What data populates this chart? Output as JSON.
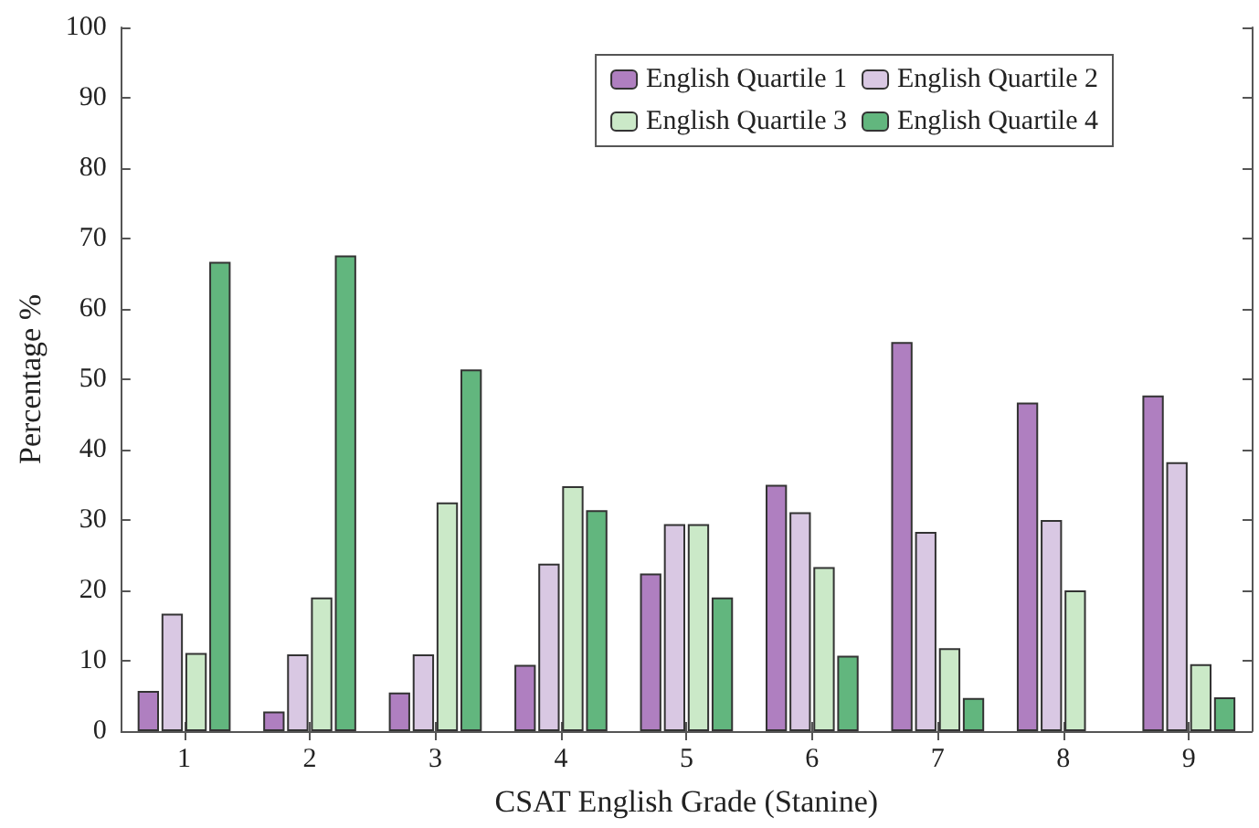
{
  "chart_data": {
    "type": "bar",
    "xlabel": "CSAT English Grade (Stanine)",
    "ylabel": "Percentage %",
    "categories": [
      "1",
      "2",
      "3",
      "4",
      "5",
      "6",
      "7",
      "8",
      "9"
    ],
    "series": [
      {
        "name": "English Quartile 1",
        "color": "#af7fc0",
        "values": [
          5.7,
          2.8,
          5.5,
          9.4,
          22.4,
          35,
          55.3,
          46.7,
          47.7
        ]
      },
      {
        "name": "English Quartile 2",
        "color": "#d9c8e3",
        "values": [
          16.7,
          10.9,
          10.9,
          23.8,
          29.4,
          31.1,
          28.3,
          30,
          38.2
        ]
      },
      {
        "name": "English Quartile 3",
        "color": "#cbe9c8",
        "values": [
          11.1,
          19,
          32.5,
          34.8,
          29.4,
          23.3,
          11.8,
          20,
          9.5
        ]
      },
      {
        "name": "English Quartile 4",
        "color": "#62b67e",
        "values": [
          66.7,
          67.6,
          51.4,
          31.4,
          19,
          10.7,
          4.7,
          null,
          4.8
        ]
      }
    ],
    "ylim": [
      0,
      100
    ],
    "yticks": [
      0,
      10,
      20,
      30,
      40,
      50,
      60,
      70,
      80,
      90,
      100
    ],
    "grid": false,
    "legend": "top right"
  }
}
